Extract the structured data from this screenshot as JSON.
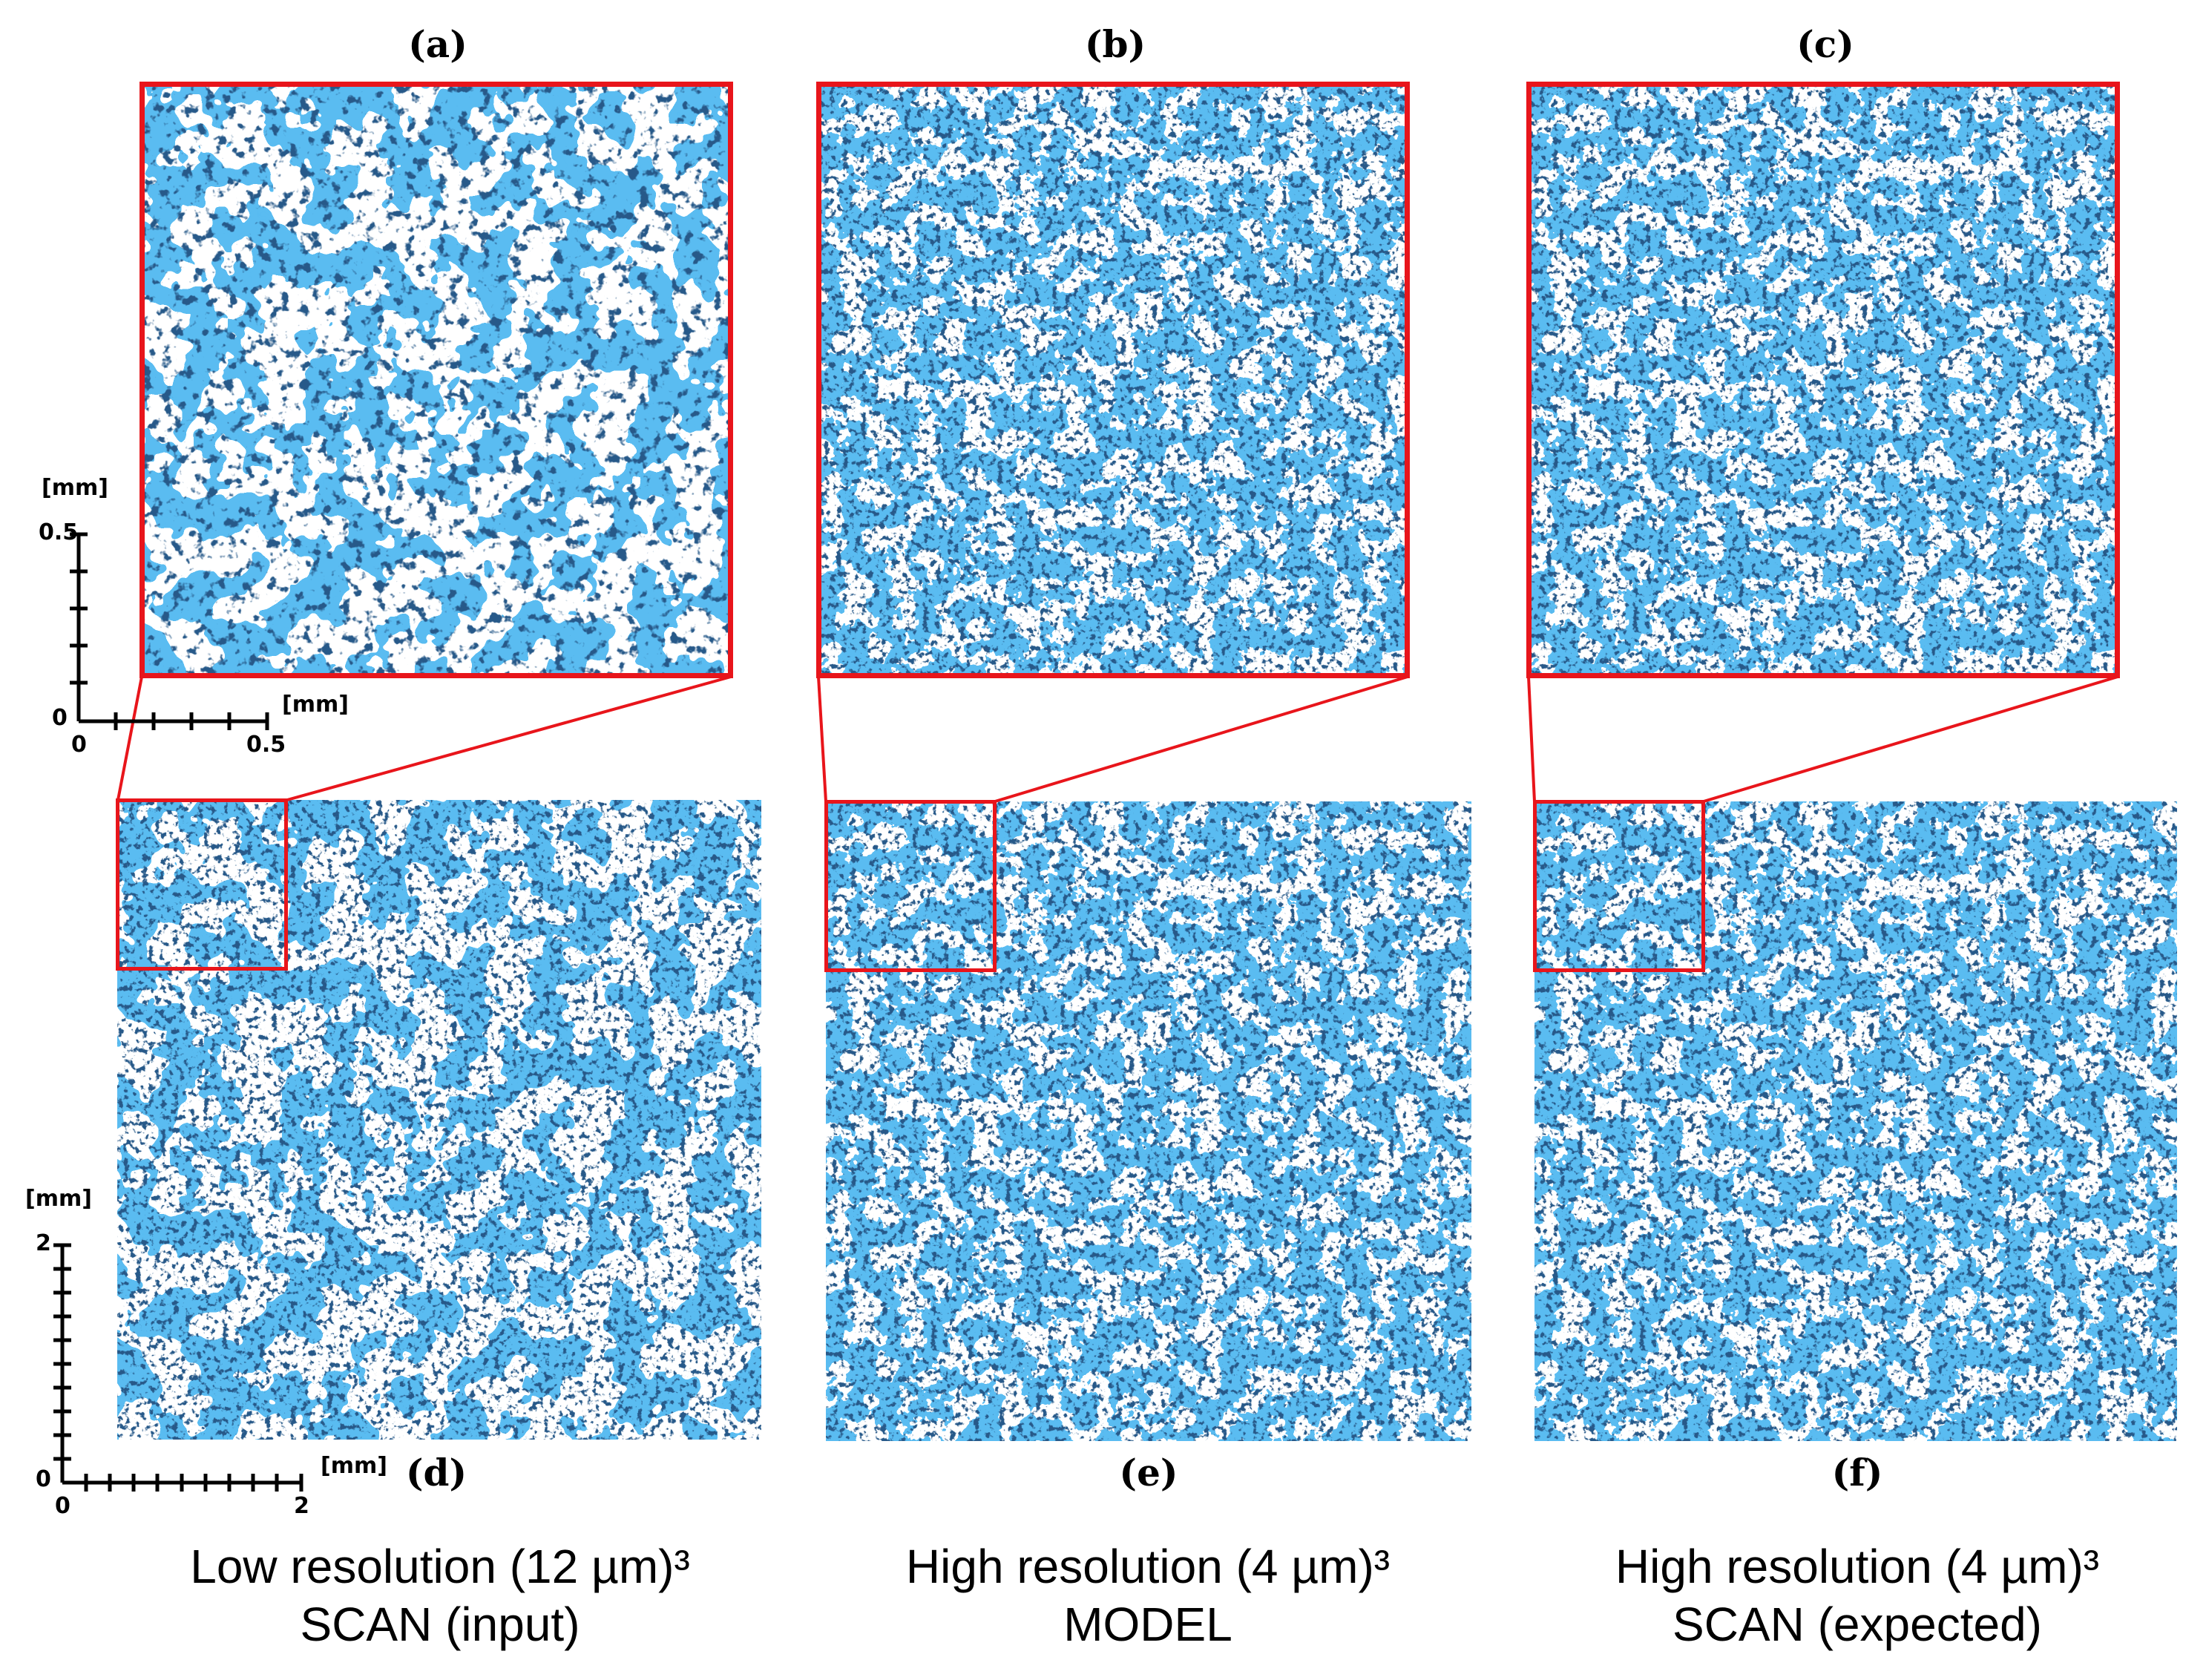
{
  "panels": {
    "a": "(a)",
    "b": "(b)",
    "c": "(c)",
    "d": "(d)",
    "e": "(e)",
    "f": "(f)"
  },
  "captions": {
    "left": {
      "line1": "Low resolution (12 µm)³",
      "line2": "SCAN (input)"
    },
    "middle": {
      "line1": "High resolution (4 µm)³",
      "line2": "MODEL"
    },
    "right": {
      "line1": "High resolution (4 µm)³",
      "line2": "SCAN (expected)"
    }
  },
  "scale_small": {
    "unit_y": "[mm]",
    "unit_x": "[mm]",
    "y_max": "0.5",
    "x_max": "0.5",
    "origin_y": "0",
    "origin_x": "0"
  },
  "scale_large": {
    "unit_y": "[mm]",
    "unit_x": "[mm]",
    "y_max": "2",
    "x_max": "2",
    "origin_y": "0",
    "origin_x": "0"
  },
  "colors": {
    "structure": "#1a7fe0",
    "frame": "#e8151b"
  }
}
